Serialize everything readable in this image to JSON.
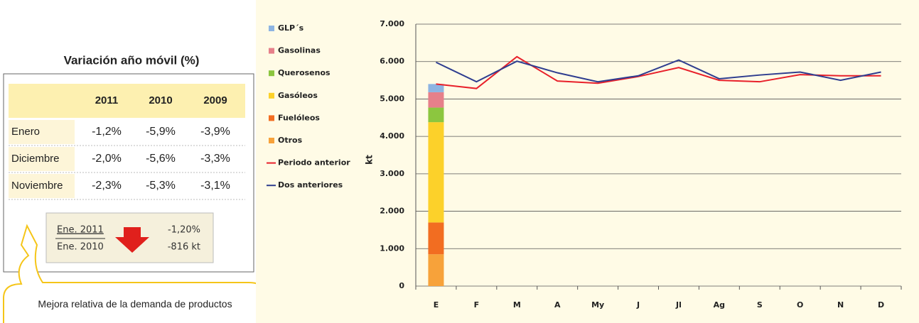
{
  "panel": {
    "title": "Variación año móvil (%)",
    "table": {
      "columns": [
        "2011",
        "2010",
        "2009"
      ],
      "rows": [
        {
          "label": "Enero",
          "cells": [
            "-1,2%",
            "-5,9%",
            "-3,9%"
          ]
        },
        {
          "label": "Diciembre",
          "cells": [
            "-2,0%",
            "-5,6%",
            "-3,3%"
          ]
        },
        {
          "label": "Noviembre",
          "cells": [
            "-2,3%",
            "-5,3%",
            "-3,1%"
          ]
        }
      ]
    },
    "summary": {
      "top": "Ene. 2011",
      "bottom": "Ene. 2010",
      "change": "-1,20%",
      "delta": "-816 kt"
    },
    "callout": "Mejora relativa de la demanda de productos"
  },
  "chart_data": {
    "type": "bar",
    "stacked": true,
    "y_label": "kt",
    "categories": [
      "E",
      "F",
      "M",
      "A",
      "My",
      "J",
      "Jl",
      "Ag",
      "S",
      "O",
      "N",
      "D"
    ],
    "ylim": [
      0,
      7000
    ],
    "yticks": [
      0,
      {
        "value": 1000,
        "label": "1.000"
      },
      {
        "value": 2000,
        "label": "2.000"
      },
      {
        "value": 3000,
        "label": "3.000"
      },
      {
        "value": 4000,
        "label": "4.000"
      },
      {
        "value": 5000,
        "label": "5.000"
      },
      {
        "value": 6000,
        "label": "6.000"
      },
      {
        "value": 7000,
        "label": "7.000"
      }
    ],
    "grid": true,
    "series": [
      {
        "name": "GLP´s",
        "type": "bar",
        "color": "#8db4e2",
        "values": [
          220,
          null,
          null,
          null,
          null,
          null,
          null,
          null,
          null,
          null,
          null,
          null
        ]
      },
      {
        "name": "Gasolinas",
        "type": "bar",
        "color": "#e6808a",
        "values": [
          410,
          null,
          null,
          null,
          null,
          null,
          null,
          null,
          null,
          null,
          null,
          null
        ]
      },
      {
        "name": "Querosenos",
        "type": "bar",
        "color": "#8cc63f",
        "values": [
          390,
          null,
          null,
          null,
          null,
          null,
          null,
          null,
          null,
          null,
          null,
          null
        ]
      },
      {
        "name": "Gasóleos",
        "type": "bar",
        "color": "#fcd12a",
        "values": [
          2680,
          null,
          null,
          null,
          null,
          null,
          null,
          null,
          null,
          null,
          null,
          null
        ]
      },
      {
        "name": "Fuelóleos",
        "type": "bar",
        "color": "#f26d21",
        "values": [
          850,
          null,
          null,
          null,
          null,
          null,
          null,
          null,
          null,
          null,
          null,
          null
        ]
      },
      {
        "name": "Otros",
        "type": "bar",
        "color": "#f7a23a",
        "values": [
          850,
          null,
          null,
          null,
          null,
          null,
          null,
          null,
          null,
          null,
          null,
          null
        ]
      },
      {
        "name": "Periodo anterior",
        "type": "line",
        "color": "#e8202a",
        "values": [
          5400,
          5280,
          6130,
          5480,
          5420,
          5600,
          5840,
          5500,
          5460,
          5650,
          5620,
          5620
        ]
      },
      {
        "name": "Dos anteriores",
        "type": "line",
        "color": "#2e3d8f",
        "values": [
          5980,
          5460,
          6010,
          5700,
          5460,
          5620,
          6040,
          5540,
          5640,
          5720,
          5500,
          5720
        ]
      }
    ]
  }
}
